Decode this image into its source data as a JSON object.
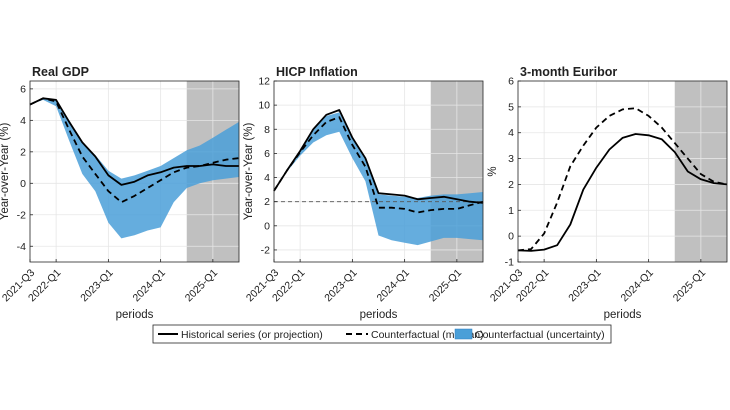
{
  "colors": {
    "historical": "#000000",
    "counterfactual": "#000000",
    "band": "#4a9fd8",
    "projection_shade": "#c0c0c0",
    "grid": "#e6e6e6",
    "axis": "#262626"
  },
  "legend": {
    "historical": "Historical series (or projection)",
    "median": "Counterfactual (median)",
    "uncertainty": "Counterfactual (uncertainty)"
  },
  "chart_data": [
    {
      "type": "line",
      "title": "Real GDP",
      "xlabel": "periods",
      "ylabel": "Year-over-Year (%)",
      "ylim": [
        -5,
        6.5
      ],
      "yticks": [
        -4,
        -2,
        0,
        2,
        4,
        6
      ],
      "x": [
        0,
        1,
        2,
        3,
        4,
        5,
        6,
        7,
        8,
        9,
        10,
        11,
        12,
        13,
        14,
        15,
        16
      ],
      "xlim": [
        0,
        16
      ],
      "xtick_positions": [
        0,
        2,
        6,
        10,
        14
      ],
      "xtick_labels": [
        "2021-Q3",
        "2022-Q1",
        "2023-Q1",
        "2024-Q1",
        "2025-Q1"
      ],
      "projection_start": 12,
      "ref_line": null,
      "series": [
        {
          "name": "Historical series (or projection)",
          "values": [
            5.0,
            5.4,
            5.3,
            3.9,
            2.6,
            1.7,
            0.5,
            -0.1,
            0.1,
            0.5,
            0.7,
            1.0,
            1.1,
            1.1,
            1.2,
            1.1,
            1.1
          ]
        },
        {
          "name": "Counterfactual (median)",
          "values": [
            5.0,
            5.4,
            5.2,
            3.4,
            1.7,
            0.6,
            -0.5,
            -1.2,
            -0.8,
            -0.3,
            0.2,
            0.7,
            1.0,
            1.1,
            1.3,
            1.5,
            1.6
          ]
        }
      ],
      "band": {
        "lower": [
          5.0,
          5.3,
          4.9,
          2.7,
          0.6,
          -0.5,
          -2.5,
          -3.5,
          -3.3,
          -3.0,
          -2.8,
          -1.2,
          -0.3,
          0.0,
          0.2,
          0.3,
          0.4
        ],
        "upper": [
          5.0,
          5.4,
          5.3,
          4.0,
          2.6,
          1.8,
          0.8,
          0.3,
          0.5,
          0.8,
          1.1,
          1.6,
          2.1,
          2.4,
          2.9,
          3.4,
          3.9
        ]
      }
    },
    {
      "type": "line",
      "title": "HICP Inflation",
      "xlabel": "periods",
      "ylabel": "Year-over-Year (%)",
      "ylim": [
        -3,
        12
      ],
      "yticks": [
        -2,
        0,
        2,
        4,
        6,
        8,
        10,
        12
      ],
      "x": [
        0,
        1,
        2,
        3,
        4,
        5,
        6,
        7,
        8,
        9,
        10,
        11,
        12,
        13,
        14,
        15,
        16
      ],
      "xlim": [
        0,
        16
      ],
      "xtick_positions": [
        0,
        2,
        6,
        10,
        14
      ],
      "xtick_labels": [
        "2021-Q3",
        "2022-Q1",
        "2023-Q1",
        "2024-Q1",
        "2025-Q1"
      ],
      "projection_start": 12,
      "ref_line": 2,
      "series": [
        {
          "name": "Historical series (or projection)",
          "values": [
            2.9,
            4.6,
            6.2,
            8.0,
            9.2,
            9.6,
            7.3,
            5.6,
            2.7,
            2.6,
            2.5,
            2.2,
            2.3,
            2.4,
            2.2,
            2.0,
            1.9
          ]
        },
        {
          "name": "Counterfactual (median)",
          "values": [
            2.9,
            4.6,
            6.1,
            7.5,
            8.6,
            9.0,
            6.7,
            4.9,
            1.5,
            1.5,
            1.4,
            1.1,
            1.3,
            1.4,
            1.4,
            1.7,
            2.0
          ]
        }
      ],
      "band": {
        "lower": [
          2.9,
          4.5,
          5.8,
          6.9,
          7.5,
          7.8,
          5.6,
          3.7,
          -0.8,
          -1.2,
          -1.4,
          -1.6,
          -1.3,
          -1.0,
          -1.0,
          -1.1,
          -1.2
        ],
        "upper": [
          2.9,
          4.6,
          6.2,
          8.0,
          9.1,
          9.4,
          7.2,
          5.5,
          2.6,
          2.5,
          2.4,
          2.3,
          2.5,
          2.6,
          2.6,
          2.7,
          2.8
        ]
      }
    },
    {
      "type": "line",
      "title": "3-month Euribor",
      "xlabel": "periods",
      "ylabel": "%",
      "ylim": [
        -1,
        6
      ],
      "yticks": [
        -1,
        0,
        1,
        2,
        3,
        4,
        5,
        6
      ],
      "x": [
        0,
        1,
        2,
        3,
        4,
        5,
        6,
        7,
        8,
        9,
        10,
        11,
        12,
        13,
        14,
        15,
        16
      ],
      "xlim": [
        0,
        16
      ],
      "xtick_positions": [
        0,
        2,
        6,
        10,
        14
      ],
      "xtick_labels": [
        "2021-Q3",
        "2022-Q1",
        "2023-Q1",
        "2024-Q1",
        "2025-Q1"
      ],
      "projection_start": 12,
      "ref_line": null,
      "series": [
        {
          "name": "Historical series (or projection)",
          "values": [
            -0.55,
            -0.57,
            -0.52,
            -0.35,
            0.45,
            1.8,
            2.65,
            3.35,
            3.8,
            3.95,
            3.9,
            3.75,
            3.25,
            2.5,
            2.2,
            2.05,
            2.0
          ]
        },
        {
          "name": "Counterfactual (median)",
          "values": [
            -0.55,
            -0.5,
            0.1,
            1.3,
            2.7,
            3.5,
            4.2,
            4.65,
            4.9,
            4.95,
            4.65,
            4.2,
            3.6,
            3.0,
            2.4,
            2.1,
            2.0
          ]
        }
      ],
      "band": null
    }
  ]
}
